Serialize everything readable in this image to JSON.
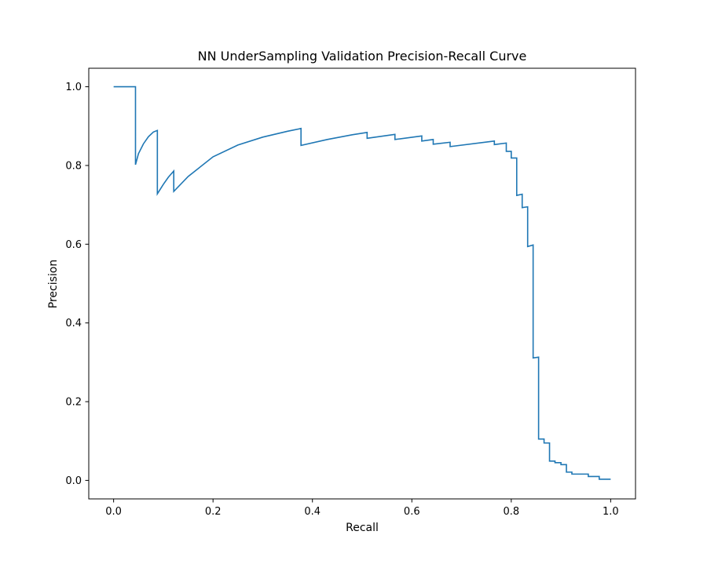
{
  "chart_data": {
    "type": "line",
    "title": "NN UnderSampling Validation Precision-Recall Curve",
    "xlabel": "Recall",
    "ylabel": "Precision",
    "xlim": [
      -0.05,
      1.05
    ],
    "ylim": [
      -0.047,
      1.047
    ],
    "grid": false,
    "x_ticks": [
      0.0,
      0.2,
      0.4,
      0.6,
      0.8,
      1.0
    ],
    "x_tick_labels": [
      "0.0",
      "0.2",
      "0.4",
      "0.6",
      "0.8",
      "1.0"
    ],
    "y_ticks": [
      0.0,
      0.2,
      0.4,
      0.6,
      0.8,
      1.0
    ],
    "y_tick_labels": [
      "0.0",
      "0.2",
      "0.4",
      "0.6",
      "0.8",
      "1.0"
    ],
    "series": [
      {
        "color": "#1f77b4",
        "x": [
          0.0,
          0.044,
          0.044,
          0.05,
          0.06,
          0.07,
          0.08,
          0.088,
          0.088,
          0.1,
          0.11,
          0.121,
          0.121,
          0.15,
          0.2,
          0.25,
          0.3,
          0.35,
          0.377,
          0.377,
          0.43,
          0.48,
          0.51,
          0.51,
          0.566,
          0.566,
          0.62,
          0.62,
          0.643,
          0.643,
          0.677,
          0.677,
          0.766,
          0.766,
          0.79,
          0.79,
          0.8,
          0.8,
          0.811,
          0.811,
          0.822,
          0.822,
          0.833,
          0.833,
          0.844,
          0.844,
          0.855,
          0.855,
          0.866,
          0.866,
          0.877,
          0.877,
          0.888,
          0.888,
          0.9,
          0.9,
          0.911,
          0.911,
          0.922,
          0.922,
          0.955,
          0.955,
          0.977,
          0.977,
          1.0
        ],
        "y": [
          1.0,
          1.0,
          0.802,
          0.83,
          0.855,
          0.873,
          0.885,
          0.889,
          0.728,
          0.752,
          0.77,
          0.786,
          0.734,
          0.772,
          0.822,
          0.852,
          0.872,
          0.887,
          0.894,
          0.851,
          0.866,
          0.878,
          0.884,
          0.869,
          0.879,
          0.866,
          0.875,
          0.862,
          0.866,
          0.854,
          0.859,
          0.848,
          0.862,
          0.853,
          0.857,
          0.836,
          0.836,
          0.819,
          0.819,
          0.724,
          0.727,
          0.693,
          0.695,
          0.594,
          0.598,
          0.311,
          0.313,
          0.105,
          0.105,
          0.095,
          0.095,
          0.049,
          0.049,
          0.045,
          0.045,
          0.04,
          0.04,
          0.021,
          0.021,
          0.016,
          0.016,
          0.01,
          0.01,
          0.003,
          0.003
        ]
      }
    ]
  }
}
